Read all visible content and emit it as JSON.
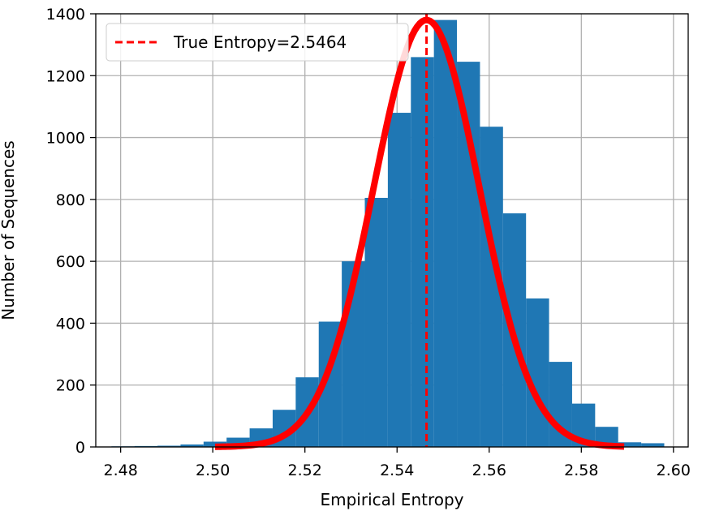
{
  "chart_data": {
    "type": "bar",
    "xlabel": "Empirical Entropy",
    "ylabel": "Number of Sequences",
    "xlim": [
      2.4746,
      2.6032
    ],
    "ylim": [
      0,
      1400
    ],
    "x_ticks": [
      "2.48",
      "2.50",
      "2.52",
      "2.54",
      "2.56",
      "2.58",
      "2.60"
    ],
    "x_tick_values": [
      2.48,
      2.5,
      2.52,
      2.54,
      2.56,
      2.58,
      2.6
    ],
    "y_ticks": [
      "0",
      "200",
      "400",
      "600",
      "800",
      "1000",
      "1200",
      "1400"
    ],
    "y_tick_values": [
      0,
      200,
      400,
      600,
      800,
      1000,
      1200,
      1400
    ],
    "grid": true,
    "legend_position": "top-left",
    "histogram": {
      "bin_edges": [
        2.478,
        2.483,
        2.488,
        2.493,
        2.498,
        2.503,
        2.508,
        2.513,
        2.518,
        2.523,
        2.528,
        2.533,
        2.538,
        2.543,
        2.548,
        2.553,
        2.558,
        2.563,
        2.568,
        2.573,
        2.578,
        2.583,
        2.588,
        2.593,
        2.598
      ],
      "counts": [
        2,
        3,
        4,
        8,
        17,
        30,
        60,
        120,
        225,
        405,
        600,
        805,
        1080,
        1260,
        1380,
        1245,
        1035,
        755,
        480,
        275,
        140,
        65,
        15,
        12
      ],
      "color": "#1f77b4"
    },
    "fit_curve": {
      "type": "gaussian",
      "mean": 2.5464,
      "sigma": 0.0115,
      "peak": 1380,
      "x_range": [
        2.5005,
        2.5893
      ],
      "color": "#ff0000"
    },
    "reference_line": {
      "x": 2.5464,
      "label": "True Entropy=2.5464",
      "color": "#ff0000",
      "style": "dashed"
    }
  }
}
